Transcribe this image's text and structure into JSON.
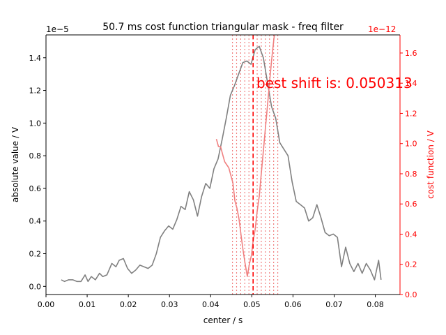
{
  "chart_data": {
    "type": "line",
    "title": "50.7 ms cost function triangular mask - freq filter",
    "xlabel": "center / s",
    "ylabel": "absolute value / V",
    "y2label": "cost function / V",
    "xlim": [
      0.0,
      0.086
    ],
    "ylim": [
      -0.05,
      1.54
    ],
    "y2lim": [
      0.0,
      1.72
    ],
    "y_offset_text": "1e−5",
    "y2_offset_text": "1e−12",
    "xticks": [
      0.0,
      0.01,
      0.02,
      0.03,
      0.04,
      0.05,
      0.06,
      0.07,
      0.08
    ],
    "xtick_labels": [
      "0.00",
      "0.01",
      "0.02",
      "0.03",
      "0.04",
      "0.05",
      "0.06",
      "0.07",
      "0.08"
    ],
    "yticks": [
      0.0,
      0.2,
      0.4,
      0.6,
      0.8,
      1.0,
      1.2,
      1.4
    ],
    "ytick_labels": [
      "0.0",
      "0.2",
      "0.4",
      "0.6",
      "0.8",
      "1.0",
      "1.2",
      "1.4"
    ],
    "y2ticks": [
      0.0,
      0.2,
      0.4,
      0.6,
      0.8,
      1.0,
      1.2,
      1.4,
      1.6
    ],
    "y2tick_labels": [
      "0.0",
      "0.2",
      "0.4",
      "0.6",
      "0.8",
      "1.0",
      "1.2",
      "1.4",
      "1.6"
    ],
    "annotation": "best shift is: 0.050313",
    "best_shift": 0.050313,
    "mask_lines": [
      0.0453,
      0.0463,
      0.0473,
      0.0483,
      0.0493,
      0.0503,
      0.0513,
      0.0523,
      0.0533,
      0.0543,
      0.0553,
      0.0563
    ],
    "colors": {
      "signal": "#808080",
      "cost": "#f08080",
      "best": "#ff0000",
      "annotation": "#ff0000",
      "axis2": "#ff0000"
    },
    "series": [
      {
        "axis": "left",
        "x": [
          0.0037,
          0.0045,
          0.0055,
          0.0065,
          0.0075,
          0.0085,
          0.0095,
          0.0102,
          0.011,
          0.012,
          0.013,
          0.0138,
          0.0148,
          0.016,
          0.017,
          0.0178,
          0.0188,
          0.0198,
          0.0208,
          0.0218,
          0.0228,
          0.0238,
          0.0248,
          0.0258,
          0.0268,
          0.0278,
          0.0288,
          0.0298,
          0.0308,
          0.0318,
          0.0328,
          0.0338,
          0.0348,
          0.0358,
          0.0368,
          0.0378,
          0.0388,
          0.0398,
          0.0408,
          0.0418,
          0.0428,
          0.0438,
          0.0448,
          0.0458,
          0.0468,
          0.0478,
          0.0488,
          0.0498,
          0.0508,
          0.0518,
          0.0528,
          0.0538,
          0.0548,
          0.0558,
          0.0568,
          0.0578,
          0.0588,
          0.0598,
          0.0608,
          0.0618,
          0.0628,
          0.0638,
          0.0648,
          0.0658,
          0.0668,
          0.0678,
          0.0688,
          0.0698,
          0.0708,
          0.0718,
          0.0728,
          0.0738,
          0.0748,
          0.0758,
          0.0768,
          0.0778,
          0.0788,
          0.0798,
          0.0808,
          0.0814
        ],
        "y": [
          0.04,
          0.03,
          0.04,
          0.04,
          0.03,
          0.03,
          0.07,
          0.03,
          0.06,
          0.04,
          0.08,
          0.06,
          0.07,
          0.14,
          0.12,
          0.16,
          0.17,
          0.11,
          0.08,
          0.1,
          0.13,
          0.12,
          0.11,
          0.13,
          0.2,
          0.3,
          0.34,
          0.37,
          0.35,
          0.41,
          0.49,
          0.47,
          0.58,
          0.53,
          0.43,
          0.55,
          0.63,
          0.6,
          0.72,
          0.78,
          0.9,
          1.03,
          1.17,
          1.23,
          1.3,
          1.37,
          1.38,
          1.36,
          1.45,
          1.47,
          1.4,
          1.25,
          1.1,
          1.03,
          0.88,
          0.84,
          0.8,
          0.64,
          0.52,
          0.5,
          0.48,
          0.4,
          0.42,
          0.5,
          0.42,
          0.33,
          0.31,
          0.32,
          0.3,
          0.12,
          0.24,
          0.14,
          0.09,
          0.14,
          0.08,
          0.14,
          0.1,
          0.04,
          0.16,
          0.04
        ]
      },
      {
        "axis": "right",
        "x": [
          0.0414,
          0.0419,
          0.0424,
          0.0429,
          0.0434,
          0.0439,
          0.0444,
          0.0449,
          0.0454,
          0.0459,
          0.0464,
          0.0469,
          0.0474,
          0.0479,
          0.0484,
          0.0489,
          0.0494,
          0.0499,
          0.0503,
          0.0508,
          0.0513,
          0.0518,
          0.0523,
          0.0528,
          0.0533,
          0.0538,
          0.0543,
          0.0548,
          0.0553,
          0.0555
        ],
        "y": [
          1.03,
          0.98,
          0.98,
          0.93,
          0.88,
          0.86,
          0.84,
          0.79,
          0.74,
          0.62,
          0.57,
          0.5,
          0.39,
          0.29,
          0.2,
          0.12,
          0.2,
          0.26,
          0.35,
          0.43,
          0.55,
          0.65,
          0.8,
          0.95,
          1.1,
          1.25,
          1.4,
          1.55,
          1.68,
          1.72
        ]
      }
    ]
  }
}
